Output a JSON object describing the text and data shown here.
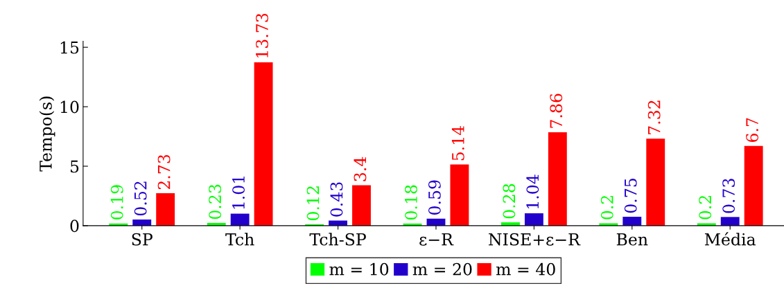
{
  "chart_data": {
    "type": "bar",
    "ylabel": "Tempo(s)",
    "categories": [
      "SP",
      "Tch",
      "Tch-SP",
      "ε−R",
      "NISE+ε−R",
      "Ben",
      "Média"
    ],
    "series": [
      {
        "name": "m = 10",
        "color": "#00ff00",
        "values": [
          0.19,
          0.23,
          0.12,
          0.18,
          0.28,
          0.2,
          0.2
        ]
      },
      {
        "name": "m = 20",
        "color": "#2200cc",
        "values": [
          0.52,
          1.01,
          0.43,
          0.59,
          1.04,
          0.75,
          0.73
        ]
      },
      {
        "name": "m = 40",
        "color": "#ff0000",
        "values": [
          2.73,
          13.73,
          3.4,
          5.14,
          7.86,
          7.32,
          6.7
        ]
      }
    ],
    "ylim": [
      0,
      15.5
    ],
    "yticks": [
      0,
      5,
      10,
      15
    ],
    "data_labels": true,
    "legend": "bottom",
    "grid": false
  }
}
